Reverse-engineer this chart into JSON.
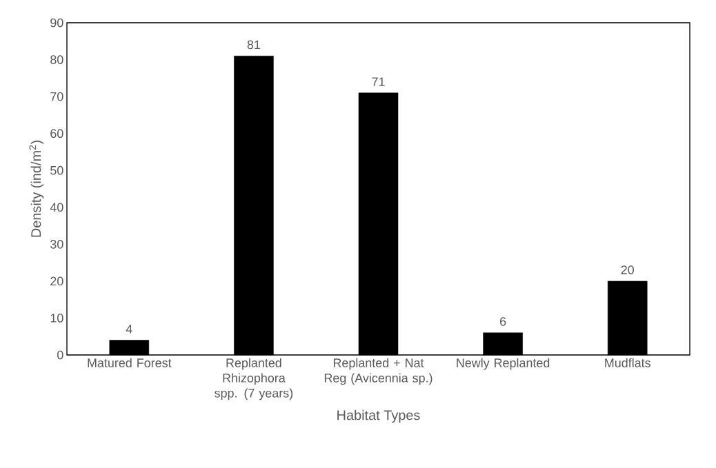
{
  "chart_data": {
    "type": "bar",
    "xlabel": "Habitat Types",
    "ylabel": "Density (ind/m$^{2}$)",
    "categories": [
      "Matured Forest",
      "Replanted Rhizophora spp. (7 years)",
      "Replanted + Nat Reg (Avicennia sp.)",
      "Newly Replanted",
      "Mudflats"
    ],
    "values": [
      4,
      81,
      71,
      6,
      20
    ],
    "color": "#000000",
    "ylim": [
      0,
      90
    ],
    "yticks": [
      0,
      10,
      20,
      30,
      40,
      50,
      60,
      70,
      80,
      90
    ],
    "data_labels": true
  }
}
